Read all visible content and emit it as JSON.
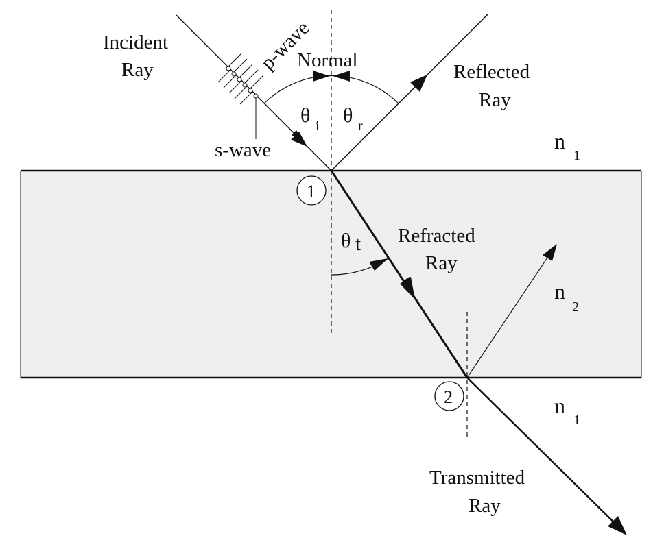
{
  "labels": {
    "incident_line1": "Incident",
    "incident_line2": "Ray",
    "p_wave": "p-wave",
    "s_wave": "s-wave",
    "normal": "Normal",
    "reflected_line1": "Reflected",
    "reflected_line2": "Ray",
    "refracted_line1": "Refracted",
    "refracted_line2": "Ray",
    "transmitted_line1": "Transmitted",
    "transmitted_line2": "Ray",
    "theta": "θ",
    "sub_i": "i",
    "sub_r": "r",
    "sub_t": "t",
    "n": "n",
    "n1_sub": "1",
    "n2_sub": "2",
    "point1": "1",
    "point2": "2"
  },
  "colors": {
    "slab_fill": "#efefef",
    "ink": "#111111",
    "background": "#ffffff"
  }
}
